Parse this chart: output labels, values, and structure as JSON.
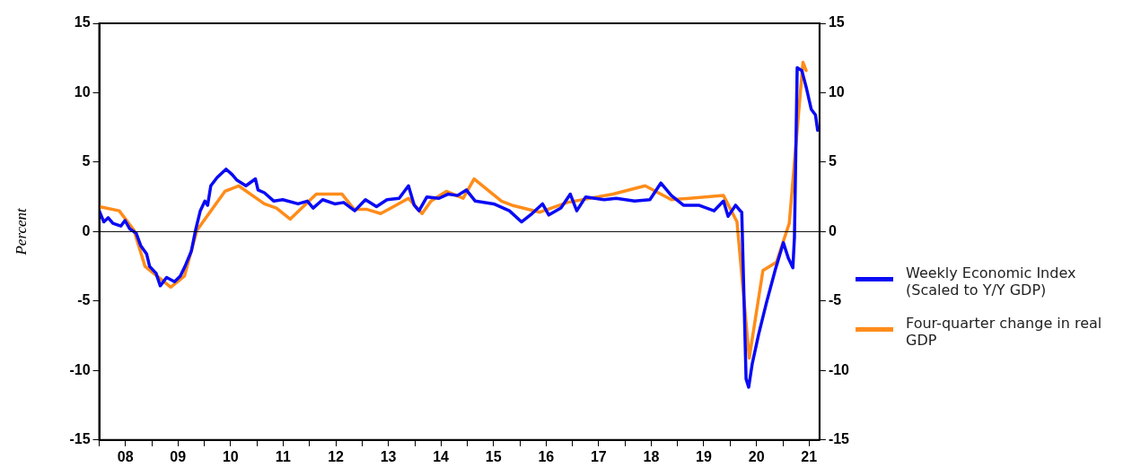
{
  "chart_data": {
    "type": "line",
    "ylabel": "Percent",
    "x": [
      "2008-01-01",
      "2008-02-02",
      "2008-03-03",
      "2008-04-05",
      "2008-05-30",
      "2008-06-28",
      "2008-07-31",
      "2008-09-13",
      "2008-10-15",
      "2008-11-25",
      "2008-12-16",
      "2009-01-30",
      "2009-02-28",
      "2009-04-13",
      "2009-06-07",
      "2009-07-17",
      "2009-08-19",
      "2009-10-02",
      "2009-10-31",
      "2009-12-03",
      "2010-01-04",
      "2010-01-23",
      "2010-02-14",
      "2010-03-30",
      "2010-05-31",
      "2010-07-13",
      "2010-08-15",
      "2010-10-16",
      "2010-12-21",
      "2011-01-08",
      "2011-02-21",
      "2011-04-28",
      "2011-06-29",
      "2011-10-13",
      "2011-12-17",
      "2012-01-26",
      "2012-04-01",
      "2012-06-24",
      "2012-08-25",
      "2012-11-10",
      "2013-01-23",
      "2013-04-10",
      "2013-06-22",
      "2013-09-14",
      "2013-11-18",
      "2013-12-28",
      "2014-01-30",
      "2014-03-26",
      "2014-06-18",
      "2014-08-19",
      "2014-10-24",
      "2014-12-25",
      "2015-02-25",
      "2015-07-03",
      "2015-10-20",
      "2016-01-12",
      "2016-03-25",
      "2016-06-06",
      "2016-07-20",
      "2016-10-12",
      "2016-12-16",
      "2017-01-30",
      "2017-04-02",
      "2017-08-08",
      "2017-10-31",
      "2018-03-08",
      "2018-06-22",
      "2018-09-06",
      "2018-11-18",
      "2019-02-10",
      "2019-05-27",
      "2019-09-10",
      "2019-11-15",
      "2019-12-17",
      "2020-02-07",
      "2020-03-10",
      "2020-03-21",
      "2020-04-20",
      "2020-05-08",
      "2020-06-02",
      "2020-07-16",
      "2020-09-09",
      "2020-11-10",
      "2021-01-04",
      "2021-02-07",
      "2021-03-11",
      "2021-03-22",
      "2021-04-10",
      "2021-05-12",
      "2021-06-14",
      "2021-07-17",
      "2021-08-15",
      "2021-08-30"
    ],
    "series": [
      {
        "name": "Weekly Economic Index (Scaled to Y/Y GDP)",
        "color": "#0a0af5",
        "values": [
          1.5,
          0.7,
          1.0,
          0.6,
          0.4,
          0.8,
          0.2,
          -0.1,
          -1.0,
          -1.6,
          -2.5,
          -3.0,
          -3.9,
          -3.3,
          -3.6,
          -3.2,
          -2.5,
          -1.4,
          0.1,
          1.5,
          2.2,
          1.9,
          3.3,
          3.9,
          4.5,
          4.1,
          3.7,
          3.3,
          3.8,
          3.0,
          2.8,
          2.2,
          2.3,
          2.0,
          2.2,
          1.7,
          2.3,
          2.0,
          2.1,
          1.5,
          2.3,
          1.8,
          2.3,
          2.4,
          3.3,
          1.9,
          1.5,
          2.5,
          2.4,
          2.7,
          2.6,
          3.0,
          2.2,
          2.0,
          1.5,
          0.7,
          1.3,
          2.0,
          1.2,
          1.7,
          2.7,
          1.5,
          2.5,
          2.3,
          2.4,
          2.2,
          2.3,
          3.5,
          2.6,
          1.9,
          1.9,
          1.5,
          2.2,
          1.1,
          1.9,
          1.5,
          1.4,
          -10.6,
          -11.2,
          -9.5,
          -7.4,
          -5.1,
          -2.7,
          -0.8,
          -1.9,
          -2.6,
          -0.4,
          11.8,
          11.6,
          10.3,
          8.8,
          8.4,
          7.3
        ]
      },
      {
        "name": "Four-quarter change in real GDP",
        "color": "#ff8c1a",
        "x": [
          "2008-01-01",
          "2008-05-19",
          "2008-08-29",
          "2008-11-14",
          "2009-05-12",
          "2009-08-15",
          "2009-11-10",
          "2010-05-23",
          "2010-08-26",
          "2011-02-21",
          "2011-05-16",
          "2011-08-19",
          "2012-02-17",
          "2012-08-14",
          "2012-11-06",
          "2013-02-03",
          "2013-05-09",
          "2013-08-23",
          "2013-11-18",
          "2014-02-21",
          "2014-04-24",
          "2014-08-08",
          "2014-12-03",
          "2015-02-17",
          "2015-08-26",
          "2015-11-07",
          "2016-05-19",
          "2016-11-25",
          "2017-10-09",
          "2018-05-20",
          "2018-11-18",
          "2019-11-15",
          "2020-02-17",
          "2020-05-12",
          "2020-08-15",
          "2020-11-17",
          "2021-02-14",
          "2021-05-20",
          "2021-06-11"
        ],
        "values": [
          1.8,
          1.5,
          0.1,
          -2.5,
          -4.0,
          -3.2,
          0.1,
          2.9,
          3.3,
          2.0,
          1.7,
          0.9,
          2.7,
          2.7,
          1.6,
          1.6,
          1.3,
          1.9,
          2.4,
          1.3,
          2.2,
          2.9,
          2.4,
          3.8,
          2.2,
          1.9,
          1.4,
          2.1,
          2.7,
          3.3,
          2.3,
          2.6,
          0.7,
          -9.1,
          -2.8,
          -2.2,
          0.6,
          12.2,
          11.6
        ]
      }
    ],
    "xlim": [
      "2008-01-01",
      "2021-09-12"
    ],
    "xticks": [
      {
        "value": "2008",
        "label": null
      },
      {
        "value": "2008-07",
        "label": "08"
      },
      {
        "value": "2009",
        "label": null
      },
      {
        "value": "2009-07",
        "label": "09"
      },
      {
        "value": "2010",
        "label": null
      },
      {
        "value": "2010-07",
        "label": "10"
      },
      {
        "value": "2011",
        "label": null
      },
      {
        "value": "2011-07",
        "label": "11"
      },
      {
        "value": "2012",
        "label": null
      },
      {
        "value": "2012-07",
        "label": "12"
      },
      {
        "value": "2013",
        "label": null
      },
      {
        "value": "2013-07",
        "label": "13"
      },
      {
        "value": "2014",
        "label": null
      },
      {
        "value": "2014-07",
        "label": "14"
      },
      {
        "value": "2015",
        "label": null
      },
      {
        "value": "2015-07",
        "label": "15"
      },
      {
        "value": "2016",
        "label": null
      },
      {
        "value": "2016-07",
        "label": "16"
      },
      {
        "value": "2017",
        "label": null
      },
      {
        "value": "2017-07",
        "label": "17"
      },
      {
        "value": "2018",
        "label": null
      },
      {
        "value": "2018-07",
        "label": "18"
      },
      {
        "value": "2019",
        "label": null
      },
      {
        "value": "2019-07",
        "label": "19"
      },
      {
        "value": "2020",
        "label": null
      },
      {
        "value": "2020-07",
        "label": "20"
      },
      {
        "value": "2021",
        "label": null
      },
      {
        "value": "2021-07",
        "label": "21"
      }
    ],
    "ylim": [
      -15,
      15
    ],
    "yticks": [
      -15,
      -10,
      -5,
      0,
      5,
      10,
      15
    ],
    "y2lim": [
      -15,
      15
    ],
    "y2ticks": [
      -15,
      -10,
      -5,
      0,
      5,
      10,
      15
    ],
    "ref_lines": [
      {
        "axis": "y",
        "value": 0,
        "color": "#000000"
      }
    ],
    "grid": false,
    "legend": "right",
    "marker": "none",
    "line_style": "solid"
  }
}
